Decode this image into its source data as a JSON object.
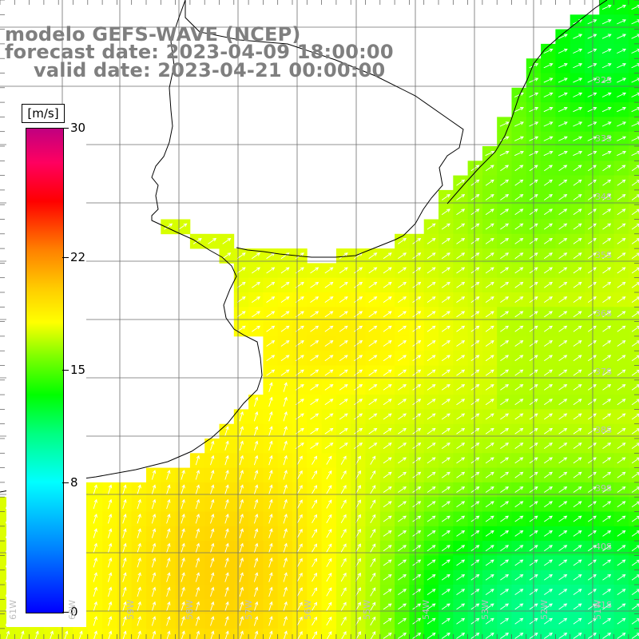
{
  "title": {
    "line1": "modelo GEFS-WAVE (NCEP)",
    "line2": "forecast date: 2023-04-09 18:00:00",
    "line3": "valid date: 2023-04-21 00:00:00"
  },
  "legend": {
    "unit": "[m/s]",
    "ticks": [
      {
        "label": "30",
        "value": 30
      },
      {
        "label": "22",
        "value": 22
      },
      {
        "label": "15",
        "value": 15
      },
      {
        "label": "8",
        "value": 8
      },
      {
        "label": "0",
        "value": 0
      }
    ],
    "colors": [
      "#0000ff",
      "#0080ff",
      "#00ffff",
      "#00ff80",
      "#00ff00",
      "#80ff00",
      "#ffff00",
      "#ffcc00",
      "#ff8000",
      "#ff0000",
      "#ff0060",
      "#c00080"
    ]
  },
  "map": {
    "lat_labels": [
      "32S",
      "33S",
      "34S",
      "35S",
      "36S",
      "37S",
      "38S",
      "39S",
      "40S",
      "41S"
    ],
    "lon_labels": [
      "61W",
      "60W",
      "59W",
      "58W",
      "57W",
      "56W",
      "55W",
      "54W",
      "53W",
      "52W",
      "51W"
    ],
    "land_color": "#ffffff",
    "grid_color": "#6e6e6e",
    "arrow_color": "#ffffff",
    "coast_color": "#000000"
  }
}
